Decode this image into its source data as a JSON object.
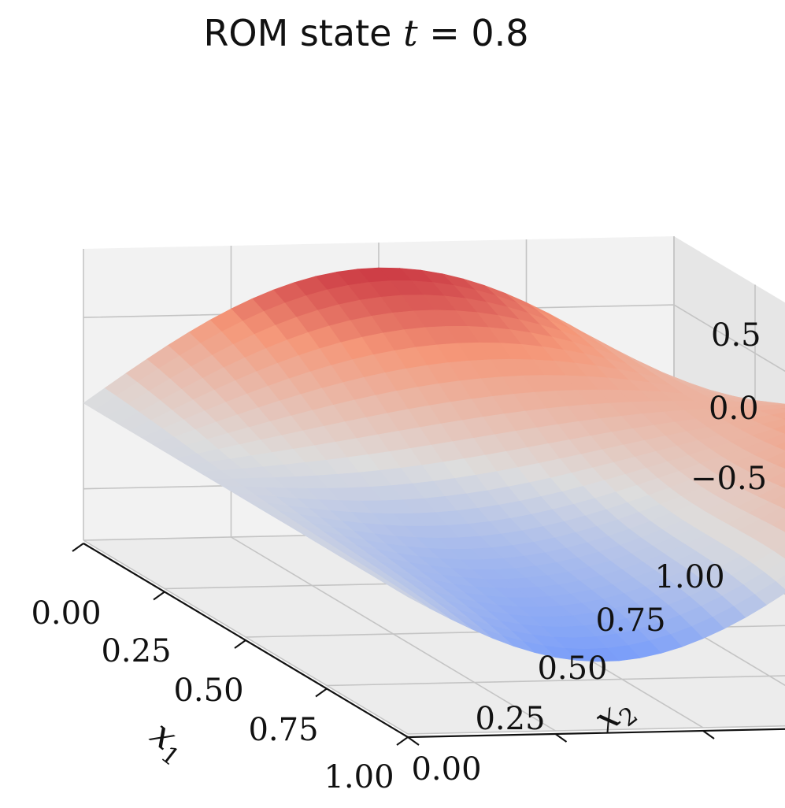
{
  "chart_data": {
    "type": "surface",
    "title": "ROM state t = 0.8",
    "title_prefix": "ROM state",
    "title_var": "t",
    "title_eq": "=",
    "title_value": "0.8",
    "xlabel": "x1",
    "xlabel_var": "x",
    "xlabel_sub": "1",
    "ylabel": "x2",
    "ylabel_var": "x",
    "ylabel_sub": "2",
    "xlim": [
      0,
      1
    ],
    "ylim": [
      0,
      1
    ],
    "zlim": [
      -0.8,
      0.9
    ],
    "x_ticks": [
      "0.00",
      "0.25",
      "0.50",
      "0.75",
      "1.00"
    ],
    "y_ticks": [
      "0.00",
      "0.25",
      "0.50",
      "0.75",
      "1.00"
    ],
    "z_ticks": [
      "−0.5",
      "0.0",
      "0.5"
    ],
    "z_tick_values": [
      -0.5,
      0.0,
      0.5
    ],
    "grid": true,
    "colormap": "coolwarm",
    "corner_values": {
      "x0_y0": 0.0,
      "x1_y0": 0.0,
      "x0_y1": 0.0,
      "x1_y1": 0.9
    },
    "approx_extrema": {
      "max_near": {
        "x1": 0.05,
        "x2": 0.45,
        "value": 0.55
      },
      "min_near": {
        "x1": 1.0,
        "x2": 0.45,
        "value": -0.75
      }
    }
  }
}
